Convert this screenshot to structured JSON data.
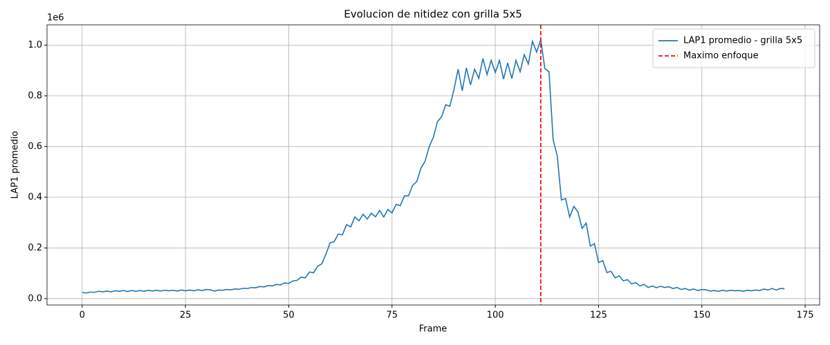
{
  "chart_data": {
    "type": "line",
    "title": "Evolucion de nitidez con grilla 5x5",
    "xlabel": "Frame",
    "ylabel": "LAP1 promedio",
    "y_offset_label": "1e6",
    "x": [
      0,
      1,
      2,
      3,
      4,
      5,
      6,
      7,
      8,
      9,
      10,
      11,
      12,
      13,
      14,
      15,
      16,
      17,
      18,
      19,
      20,
      21,
      22,
      23,
      24,
      25,
      26,
      27,
      28,
      29,
      30,
      31,
      32,
      33,
      34,
      35,
      36,
      37,
      38,
      39,
      40,
      41,
      42,
      43,
      44,
      45,
      46,
      47,
      48,
      49,
      50,
      51,
      52,
      53,
      54,
      55,
      56,
      57,
      58,
      59,
      60,
      61,
      62,
      63,
      64,
      65,
      66,
      67,
      68,
      69,
      70,
      71,
      72,
      73,
      74,
      75,
      76,
      77,
      78,
      79,
      80,
      81,
      82,
      83,
      84,
      85,
      86,
      87,
      88,
      89,
      90,
      91,
      92,
      93,
      94,
      95,
      96,
      97,
      98,
      99,
      100,
      101,
      102,
      103,
      104,
      105,
      106,
      107,
      108,
      109,
      110,
      111,
      112,
      113,
      114,
      115,
      116,
      117,
      118,
      119,
      120,
      121,
      122,
      123,
      124,
      125,
      126,
      127,
      128,
      129,
      130,
      131,
      132,
      133,
      134,
      135,
      136,
      137,
      138,
      139,
      140,
      141,
      142,
      143,
      144,
      145,
      146,
      147,
      148,
      149,
      150,
      151,
      152,
      153,
      154,
      155,
      156,
      157,
      158,
      159,
      160,
      161,
      162,
      163,
      164,
      165,
      166,
      167,
      168,
      169,
      170
    ],
    "series": [
      {
        "name": "LAP1 promedio - grilla 5x5",
        "color": "#1f77b4",
        "values": [
          0.025,
          0.022,
          0.026,
          0.025,
          0.029,
          0.027,
          0.03,
          0.027,
          0.031,
          0.029,
          0.032,
          0.028,
          0.032,
          0.029,
          0.032,
          0.029,
          0.033,
          0.03,
          0.033,
          0.03,
          0.033,
          0.031,
          0.033,
          0.03,
          0.034,
          0.031,
          0.034,
          0.031,
          0.035,
          0.032,
          0.036,
          0.035,
          0.03,
          0.034,
          0.033,
          0.036,
          0.035,
          0.038,
          0.037,
          0.041,
          0.04,
          0.044,
          0.043,
          0.048,
          0.046,
          0.052,
          0.05,
          0.056,
          0.054,
          0.062,
          0.06,
          0.07,
          0.072,
          0.085,
          0.082,
          0.105,
          0.102,
          0.128,
          0.137,
          0.175,
          0.22,
          0.225,
          0.255,
          0.252,
          0.292,
          0.283,
          0.322,
          0.307,
          0.333,
          0.314,
          0.337,
          0.323,
          0.348,
          0.322,
          0.352,
          0.338,
          0.372,
          0.367,
          0.405,
          0.406,
          0.447,
          0.462,
          0.515,
          0.542,
          0.6,
          0.636,
          0.698,
          0.718,
          0.765,
          0.759,
          0.825,
          0.905,
          0.82,
          0.91,
          0.843,
          0.905,
          0.869,
          0.947,
          0.884,
          0.94,
          0.892,
          0.94,
          0.866,
          0.93,
          0.868,
          0.94,
          0.895,
          0.962,
          0.926,
          1.015,
          0.972,
          1.022,
          0.907,
          0.895,
          0.626,
          0.563,
          0.389,
          0.395,
          0.322,
          0.364,
          0.342,
          0.277,
          0.298,
          0.207,
          0.217,
          0.142,
          0.15,
          0.103,
          0.108,
          0.082,
          0.09,
          0.07,
          0.075,
          0.058,
          0.063,
          0.05,
          0.056,
          0.044,
          0.05,
          0.043,
          0.049,
          0.044,
          0.047,
          0.04,
          0.044,
          0.036,
          0.04,
          0.033,
          0.038,
          0.032,
          0.036,
          0.035,
          0.03,
          0.032,
          0.029,
          0.033,
          0.03,
          0.033,
          0.031,
          0.032,
          0.029,
          0.033,
          0.031,
          0.034,
          0.032,
          0.038,
          0.034,
          0.04,
          0.034,
          0.04,
          0.039
        ]
      }
    ],
    "vline": {
      "x": 111,
      "name": "Maximo enfoque",
      "color": "#ff0000"
    },
    "xlim": [
      -8.5,
      178.5
    ],
    "xticks": [
      0,
      25,
      50,
      75,
      100,
      125,
      150,
      175
    ],
    "ylim": [
      -0.025,
      1.08
    ],
    "yticks": [
      {
        "value": 0,
        "label": "0.0"
      },
      0.2,
      0.4,
      0.6,
      0.8,
      {
        "value": 1,
        "label": "1.0"
      }
    ],
    "grid": true,
    "legend": "upper-right"
  }
}
